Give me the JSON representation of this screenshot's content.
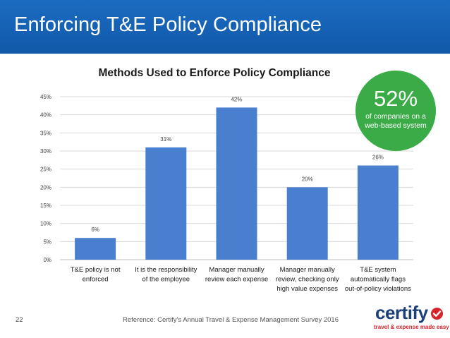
{
  "slide": {
    "title": "Enforcing T&E Policy Compliance",
    "page_number": "22",
    "reference": "Reference: Certify's Annual Travel & Expense Management Survey 2016"
  },
  "badge": {
    "value": "52%",
    "caption": "of companies on a web-based system",
    "color": "#3aab47"
  },
  "logo": {
    "name": "certify",
    "tagline": "travel & expense made easy",
    "colors": {
      "word": "#1b3f78",
      "accent": "#d8232a"
    }
  },
  "chart_data": {
    "type": "bar",
    "title": "Methods Used to Enforce Policy Compliance",
    "xlabel": "",
    "ylabel": "",
    "categories": [
      [
        "T&E policy is not",
        "enforced"
      ],
      [
        "It is the responsibility",
        "of the employee"
      ],
      [
        "Manager manually",
        "review each expense"
      ],
      [
        "Manager manually",
        "review, checking only",
        "high value expenses"
      ],
      [
        "T&E system",
        "automatically flags",
        "out-of-policy violations"
      ]
    ],
    "values": [
      6,
      31,
      42,
      20,
      26
    ],
    "data_labels": [
      "6%",
      "31%",
      "42%",
      "20%",
      "26%"
    ],
    "ylim": [
      0,
      45
    ],
    "yticks": [
      0,
      5,
      10,
      15,
      20,
      25,
      30,
      35,
      40,
      45
    ],
    "ytick_labels": [
      "0%",
      "5%",
      "10%",
      "15%",
      "20%",
      "25%",
      "30%",
      "35%",
      "40%",
      "45%"
    ],
    "grid": true,
    "legend": "none",
    "bar_color": "#4a7fd0"
  }
}
